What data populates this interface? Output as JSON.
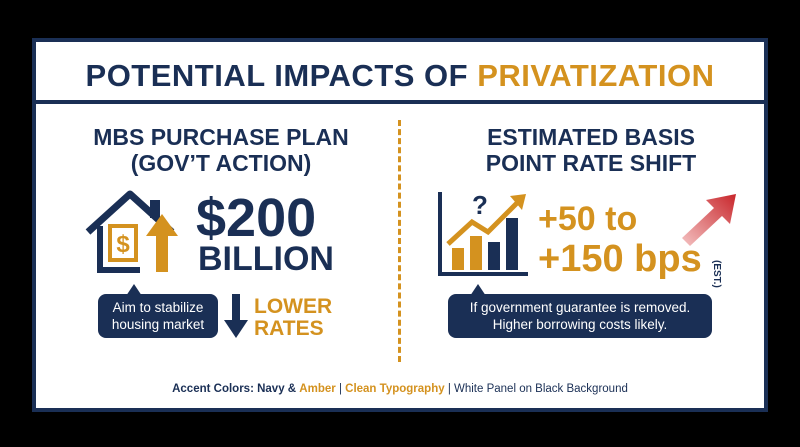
{
  "header": {
    "title": "POTENTIAL IMPACTS OF",
    "title_accent": "PRIVATIZATION"
  },
  "left": {
    "heading": [
      "MBS PURCHASE PLAN",
      "(GOV’T ACTION)"
    ],
    "amount": "$200",
    "unit": "BILLION",
    "callout": [
      "Aim to stabilize",
      "housing market"
    ],
    "effect": [
      "LOWER",
      "RATES"
    ]
  },
  "right": {
    "heading": [
      "ESTIMATED BASIS",
      "POINT RATE SHIFT"
    ],
    "range": [
      "+50 to",
      "+150 bps"
    ],
    "note": "(EST.)",
    "callout": [
      "If government guarantee is removed.",
      "Higher borrowing costs likely."
    ]
  },
  "footer": [
    "Accent Colors: Navy &",
    "Amber",
    "|",
    "Clean Typography",
    "| White Panel on Black Background"
  ]
}
